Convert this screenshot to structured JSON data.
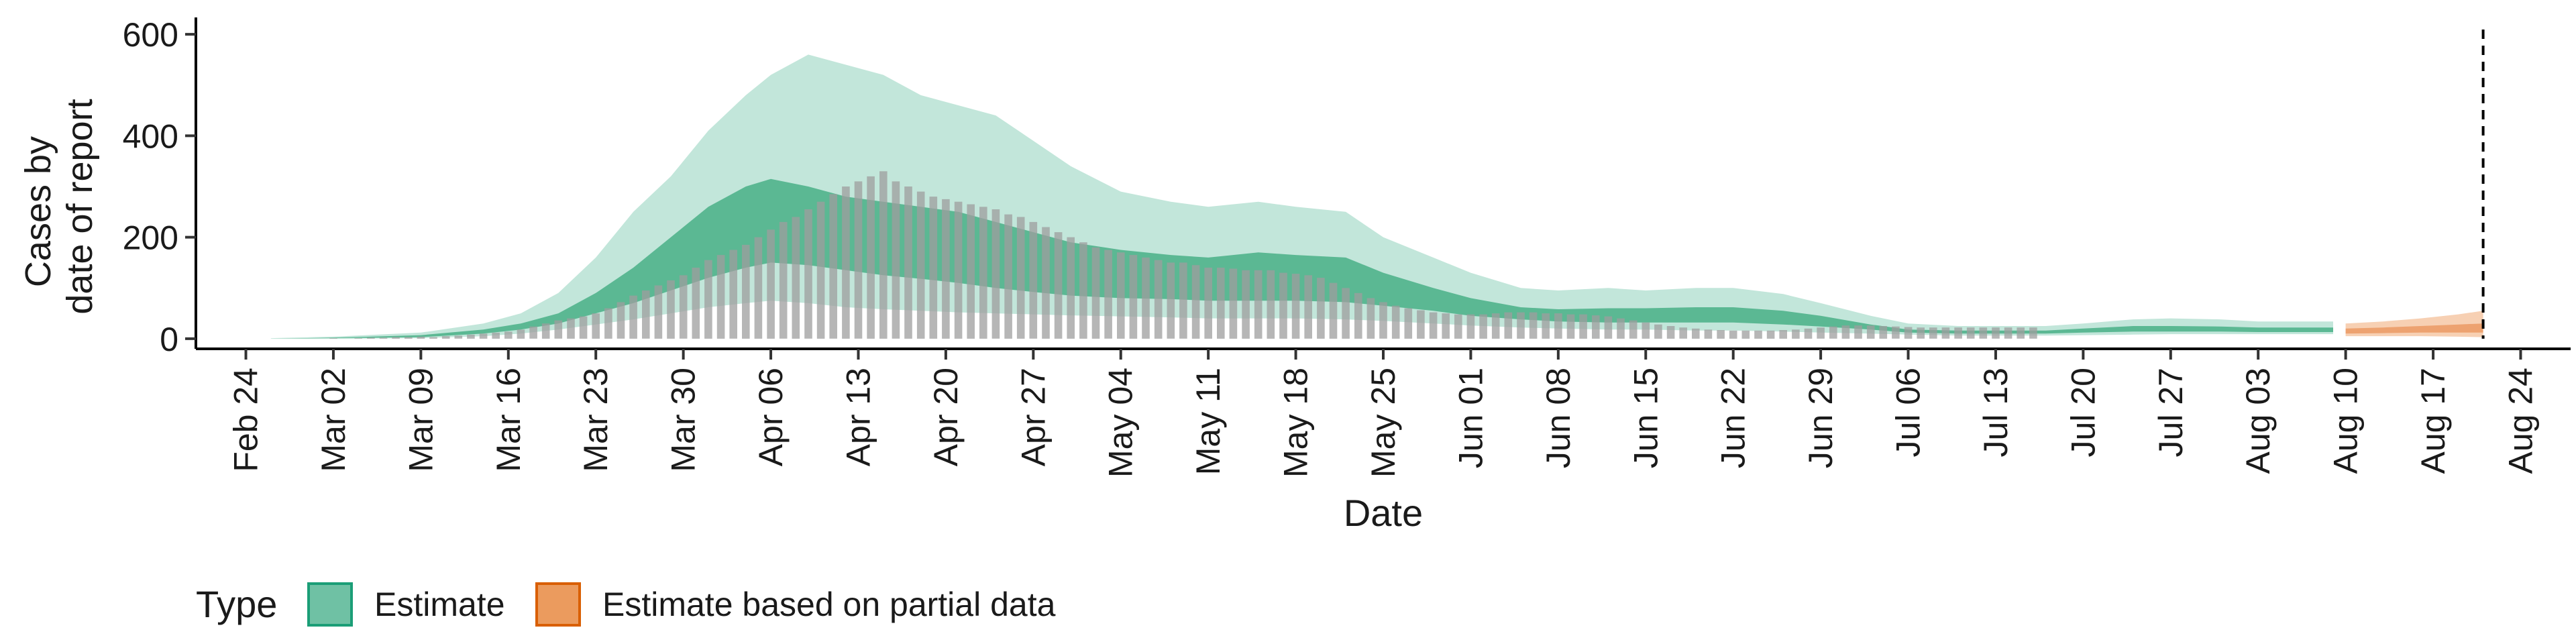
{
  "chart_data": {
    "type": "area",
    "xlabel": "Date",
    "ylabel_lines": [
      "Cases by",
      "date of report"
    ],
    "ylim": [
      -20,
      620
    ],
    "yticks": [
      0,
      200,
      400,
      600
    ],
    "xlim": [
      "2020-02-20",
      "2020-08-28"
    ],
    "xtick_labels": [
      "Feb 24",
      "Mar 02",
      "Mar 09",
      "Mar 16",
      "Mar 23",
      "Mar 30",
      "Apr 06",
      "Apr 13",
      "Apr 20",
      "Apr 27",
      "May 04",
      "May 11",
      "May 18",
      "May 25",
      "Jun 01",
      "Jun 08",
      "Jun 15",
      "Jun 22",
      "Jun 29",
      "Jul 06",
      "Jul 13",
      "Jul 20",
      "Jul 27",
      "Aug 03",
      "Aug 10",
      "Aug 17",
      "Aug 24"
    ],
    "xtick_dates": [
      "2020-02-24",
      "2020-03-02",
      "2020-03-09",
      "2020-03-16",
      "2020-03-23",
      "2020-03-30",
      "2020-04-06",
      "2020-04-13",
      "2020-04-20",
      "2020-04-27",
      "2020-05-04",
      "2020-05-11",
      "2020-05-18",
      "2020-05-25",
      "2020-06-01",
      "2020-06-08",
      "2020-06-15",
      "2020-06-22",
      "2020-06-29",
      "2020-07-06",
      "2020-07-13",
      "2020-07-20",
      "2020-07-27",
      "2020-08-03",
      "2020-08-10",
      "2020-08-17",
      "2020-08-24"
    ],
    "vline_date": "2020-08-21",
    "legend": {
      "position": "bottom-left",
      "title": "Type",
      "entries": [
        {
          "label": "Estimate",
          "fill": "#6fc1a4",
          "stroke": "#1b9e77"
        },
        {
          "label": "Estimate based on partial data",
          "fill": "#eb9b5e",
          "stroke": "#d95f02"
        }
      ]
    },
    "colors": {
      "estimate_outer": "#c2e6da",
      "estimate_inner": "#5bb893",
      "partial_outer": "#f7d0b3",
      "partial_inner": "#eda270",
      "bars": "#9e9e9e"
    },
    "estimate_bands": {
      "dates": [
        "2020-02-26",
        "2020-03-02",
        "2020-03-09",
        "2020-03-14",
        "2020-03-17",
        "2020-03-20",
        "2020-03-23",
        "2020-03-26",
        "2020-03-29",
        "2020-04-01",
        "2020-04-04",
        "2020-04-06",
        "2020-04-09",
        "2020-04-12",
        "2020-04-15",
        "2020-04-18",
        "2020-04-21",
        "2020-04-24",
        "2020-04-27",
        "2020-04-30",
        "2020-05-04",
        "2020-05-08",
        "2020-05-11",
        "2020-05-15",
        "2020-05-18",
        "2020-05-22",
        "2020-05-25",
        "2020-05-29",
        "2020-06-01",
        "2020-06-05",
        "2020-06-08",
        "2020-06-12",
        "2020-06-15",
        "2020-06-19",
        "2020-06-22",
        "2020-06-26",
        "2020-06-29",
        "2020-07-03",
        "2020-07-06",
        "2020-07-10",
        "2020-07-13",
        "2020-07-17",
        "2020-07-20",
        "2020-07-24",
        "2020-07-27",
        "2020-07-31",
        "2020-08-03",
        "2020-08-06",
        "2020-08-09"
      ],
      "outer_lower": [
        0,
        0,
        1,
        5,
        10,
        18,
        28,
        38,
        50,
        62,
        70,
        75,
        70,
        62,
        58,
        55,
        52,
        50,
        48,
        46,
        44,
        42,
        40,
        40,
        40,
        38,
        35,
        30,
        26,
        22,
        20,
        18,
        18,
        16,
        16,
        14,
        12,
        10,
        8,
        6,
        6,
        6,
        7,
        8,
        9,
        9,
        9,
        9,
        9
      ],
      "inner_lower": [
        0,
        1,
        3,
        10,
        18,
        30,
        50,
        70,
        95,
        120,
        140,
        150,
        145,
        135,
        125,
        118,
        110,
        100,
        92,
        85,
        80,
        78,
        75,
        75,
        75,
        72,
        65,
        55,
        45,
        38,
        34,
        32,
        32,
        32,
        32,
        28,
        24,
        18,
        12,
        10,
        10,
        10,
        12,
        14,
        14,
        14,
        13,
        13,
        13
      ],
      "inner_upper": [
        0,
        2,
        7,
        18,
        30,
        50,
        90,
        140,
        200,
        260,
        300,
        315,
        300,
        280,
        270,
        260,
        250,
        230,
        210,
        190,
        175,
        165,
        160,
        170,
        165,
        160,
        130,
        100,
        80,
        62,
        58,
        60,
        60,
        62,
        62,
        55,
        45,
        28,
        18,
        16,
        16,
        16,
        20,
        25,
        25,
        24,
        22,
        22,
        22
      ],
      "outer_upper": [
        1,
        4,
        12,
        30,
        50,
        90,
        160,
        250,
        320,
        410,
        480,
        520,
        560,
        540,
        520,
        480,
        460,
        440,
        390,
        340,
        290,
        270,
        260,
        270,
        260,
        250,
        200,
        160,
        130,
        100,
        95,
        100,
        95,
        100,
        100,
        88,
        70,
        45,
        30,
        25,
        25,
        25,
        30,
        38,
        40,
        38,
        34,
        34,
        34
      ]
    },
    "partial_bands": {
      "dates": [
        "2020-08-10",
        "2020-08-13",
        "2020-08-16",
        "2020-08-19",
        "2020-08-21"
      ],
      "outer_lower": [
        5,
        5,
        5,
        4,
        3
      ],
      "inner_lower": [
        10,
        11,
        12,
        12,
        12
      ],
      "inner_upper": [
        20,
        22,
        25,
        28,
        30
      ],
      "outer_upper": [
        30,
        34,
        40,
        48,
        55
      ]
    },
    "reported_bars": {
      "start_date": "2020-02-26",
      "values": [
        0,
        0,
        0,
        0,
        0,
        1,
        0,
        1,
        2,
        2,
        3,
        3,
        4,
        3,
        5,
        6,
        8,
        10,
        12,
        14,
        18,
        24,
        30,
        36,
        40,
        44,
        50,
        60,
        72,
        85,
        95,
        105,
        115,
        125,
        140,
        155,
        165,
        175,
        185,
        200,
        215,
        230,
        240,
        255,
        270,
        285,
        300,
        310,
        320,
        330,
        310,
        300,
        290,
        280,
        275,
        270,
        265,
        260,
        255,
        245,
        240,
        230,
        220,
        210,
        200,
        190,
        180,
        175,
        170,
        165,
        160,
        155,
        150,
        150,
        145,
        140,
        140,
        138,
        135,
        135,
        135,
        130,
        128,
        125,
        120,
        110,
        100,
        90,
        80,
        72,
        65,
        60,
        56,
        52,
        50,
        48,
        48,
        48,
        50,
        52,
        52,
        52,
        50,
        50,
        48,
        48,
        46,
        44,
        40,
        36,
        32,
        28,
        25,
        22,
        20,
        18,
        17,
        16,
        16,
        16,
        16,
        17,
        18,
        20,
        22,
        24,
        26,
        26,
        26,
        25,
        24,
        23,
        22,
        22,
        22,
        22,
        22,
        22,
        22,
        22,
        22,
        22
      ]
    }
  }
}
